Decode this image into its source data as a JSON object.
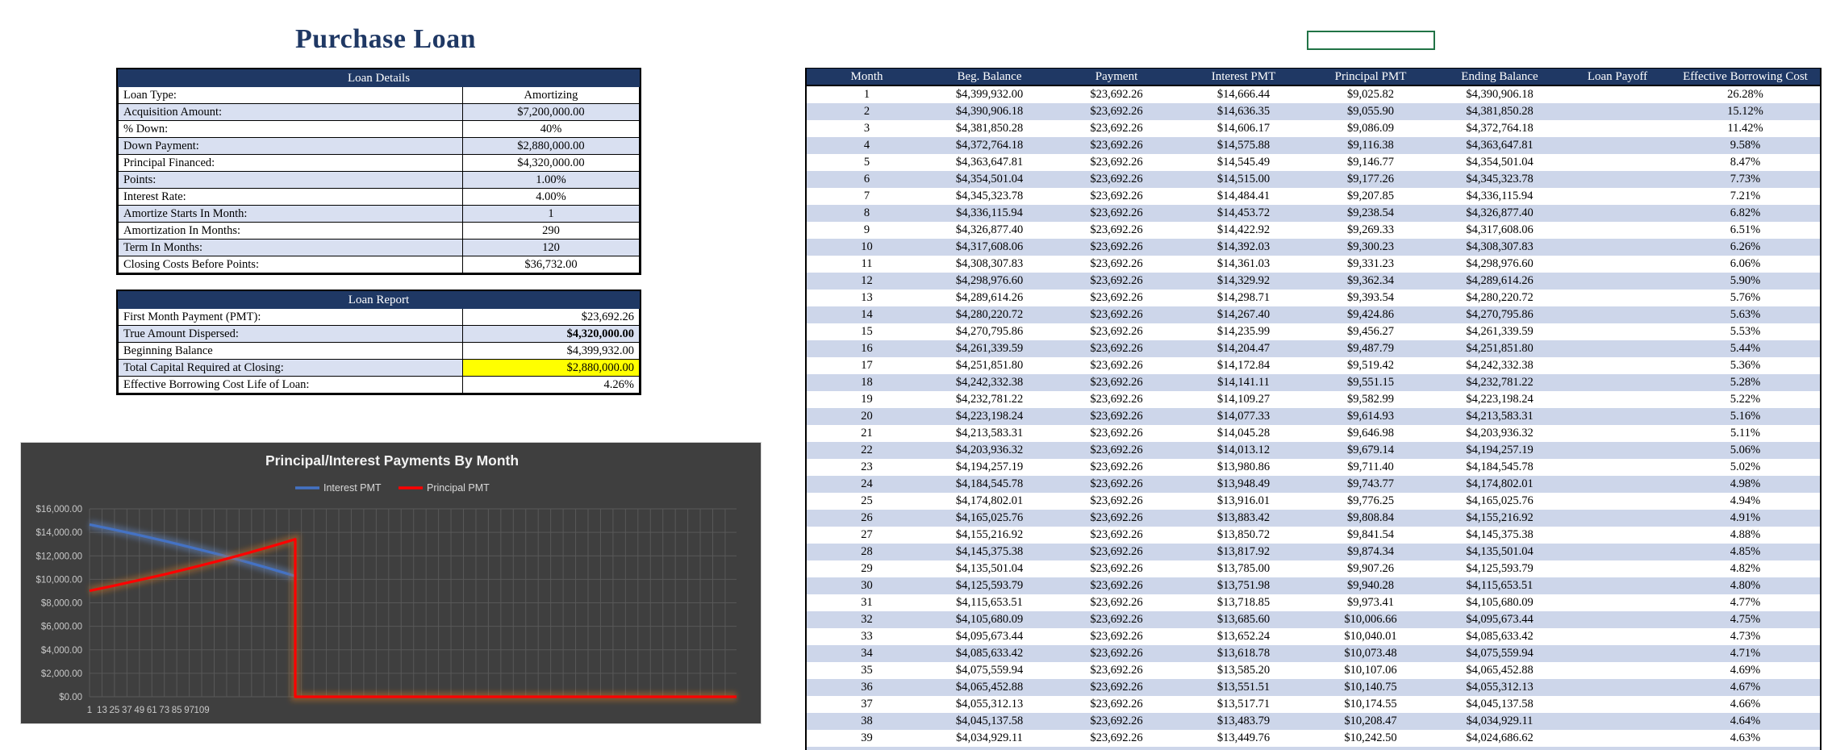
{
  "workbook": {
    "title": "Purchase Loan"
  },
  "loan_details": {
    "header": "Loan Details",
    "rows": [
      {
        "label": "Loan Type:",
        "value": "Amortizing"
      },
      {
        "label": "Acquisition Amount:",
        "value": "$7,200,000.00"
      },
      {
        "label": "% Down:",
        "value": "40%"
      },
      {
        "label": "Down Payment:",
        "value": "$2,880,000.00"
      },
      {
        "label": "Principal Financed:",
        "value": "$4,320,000.00"
      },
      {
        "label": "Points:",
        "value": "1.00%"
      },
      {
        "label": "Interest Rate:",
        "value": "4.00%"
      },
      {
        "label": "Amortize Starts In Month:",
        "value": "1"
      },
      {
        "label": "Amortization In Months:",
        "value": "290"
      },
      {
        "label": "Term In Months:",
        "value": "120"
      },
      {
        "label": "Closing Costs Before Points:",
        "value": "$36,732.00"
      }
    ]
  },
  "loan_report": {
    "header": "Loan Report",
    "rows": [
      {
        "label": "First Month Payment (PMT):",
        "value": "$23,692.26"
      },
      {
        "label": "True Amount Dispersed:",
        "value": "$4,320,000.00",
        "bold": true
      },
      {
        "label": "Beginning Balance",
        "value": "$4,399,932.00"
      },
      {
        "label": "Total Capital Required at Closing:",
        "value": "$2,880,000.00",
        "highlight": true
      },
      {
        "label": "Effective Borrowing Cost Life of Loan:",
        "value": "4.26%"
      }
    ]
  },
  "selection": {
    "value": ""
  },
  "chart_data": {
    "type": "line",
    "title": "Principal/Interest Payments By Month",
    "legend_position": "top",
    "grid": true,
    "ylim": [
      0,
      16000
    ],
    "y_tick_labels": [
      "$16,000.00",
      "$14,000.00",
      "$12,000.00",
      "$10,000.00",
      "$8,000.00",
      "$6,000.00",
      "$4,000.00",
      "$2,000.00",
      "$0.00"
    ],
    "x_tick_labels": [
      "1",
      "13",
      "25",
      "37",
      "49",
      "61",
      "73",
      "85",
      "97",
      "109"
    ],
    "series": [
      {
        "name": "Interest PMT",
        "color": "#4472C4",
        "glow": "rgba(100,140,205,0.45)",
        "points": [
          [
            1,
            14666
          ],
          [
            15,
            14236
          ],
          [
            30,
            13752
          ],
          [
            45,
            13244
          ],
          [
            60,
            12709
          ],
          [
            75,
            12146
          ],
          [
            90,
            11555
          ],
          [
            105,
            10934
          ],
          [
            120,
            10281
          ]
        ]
      },
      {
        "name": "Principal PMT",
        "color": "#FF0000",
        "glow": "rgba(205,115,40,0.45)",
        "points": [
          [
            1,
            9026
          ],
          [
            15,
            9456
          ],
          [
            30,
            9940
          ],
          [
            45,
            10448
          ],
          [
            60,
            10983
          ],
          [
            75,
            11546
          ],
          [
            90,
            12137
          ],
          [
            105,
            12758
          ],
          [
            120,
            13411
          ],
          [
            120,
            0
          ],
          [
            640,
            0
          ]
        ]
      }
    ]
  },
  "amortization": {
    "columns": [
      "Month",
      "Beg. Balance",
      "Payment",
      "Interest PMT",
      "Principal PMT",
      "Ending Balance",
      "Loan Payoff",
      "Effective Borrowing Cost"
    ],
    "rows": [
      [
        "1",
        "$4,399,932.00",
        "$23,692.26",
        "$14,666.44",
        "$9,025.82",
        "$4,390,906.18",
        "",
        "26.28%"
      ],
      [
        "2",
        "$4,390,906.18",
        "$23,692.26",
        "$14,636.35",
        "$9,055.90",
        "$4,381,850.28",
        "",
        "15.12%"
      ],
      [
        "3",
        "$4,381,850.28",
        "$23,692.26",
        "$14,606.17",
        "$9,086.09",
        "$4,372,764.18",
        "",
        "11.42%"
      ],
      [
        "4",
        "$4,372,764.18",
        "$23,692.26",
        "$14,575.88",
        "$9,116.38",
        "$4,363,647.81",
        "",
        "9.58%"
      ],
      [
        "5",
        "$4,363,647.81",
        "$23,692.26",
        "$14,545.49",
        "$9,146.77",
        "$4,354,501.04",
        "",
        "8.47%"
      ],
      [
        "6",
        "$4,354,501.04",
        "$23,692.26",
        "$14,515.00",
        "$9,177.26",
        "$4,345,323.78",
        "",
        "7.73%"
      ],
      [
        "7",
        "$4,345,323.78",
        "$23,692.26",
        "$14,484.41",
        "$9,207.85",
        "$4,336,115.94",
        "",
        "7.21%"
      ],
      [
        "8",
        "$4,336,115.94",
        "$23,692.26",
        "$14,453.72",
        "$9,238.54",
        "$4,326,877.40",
        "",
        "6.82%"
      ],
      [
        "9",
        "$4,326,877.40",
        "$23,692.26",
        "$14,422.92",
        "$9,269.33",
        "$4,317,608.06",
        "",
        "6.51%"
      ],
      [
        "10",
        "$4,317,608.06",
        "$23,692.26",
        "$14,392.03",
        "$9,300.23",
        "$4,308,307.83",
        "",
        "6.26%"
      ],
      [
        "11",
        "$4,308,307.83",
        "$23,692.26",
        "$14,361.03",
        "$9,331.23",
        "$4,298,976.60",
        "",
        "6.06%"
      ],
      [
        "12",
        "$4,298,976.60",
        "$23,692.26",
        "$14,329.92",
        "$9,362.34",
        "$4,289,614.26",
        "",
        "5.90%"
      ],
      [
        "13",
        "$4,289,614.26",
        "$23,692.26",
        "$14,298.71",
        "$9,393.54",
        "$4,280,220.72",
        "",
        "5.76%"
      ],
      [
        "14",
        "$4,280,220.72",
        "$23,692.26",
        "$14,267.40",
        "$9,424.86",
        "$4,270,795.86",
        "",
        "5.63%"
      ],
      [
        "15",
        "$4,270,795.86",
        "$23,692.26",
        "$14,235.99",
        "$9,456.27",
        "$4,261,339.59",
        "",
        "5.53%"
      ],
      [
        "16",
        "$4,261,339.59",
        "$23,692.26",
        "$14,204.47",
        "$9,487.79",
        "$4,251,851.80",
        "",
        "5.44%"
      ],
      [
        "17",
        "$4,251,851.80",
        "$23,692.26",
        "$14,172.84",
        "$9,519.42",
        "$4,242,332.38",
        "",
        "5.36%"
      ],
      [
        "18",
        "$4,242,332.38",
        "$23,692.26",
        "$14,141.11",
        "$9,551.15",
        "$4,232,781.22",
        "",
        "5.28%"
      ],
      [
        "19",
        "$4,232,781.22",
        "$23,692.26",
        "$14,109.27",
        "$9,582.99",
        "$4,223,198.24",
        "",
        "5.22%"
      ],
      [
        "20",
        "$4,223,198.24",
        "$23,692.26",
        "$14,077.33",
        "$9,614.93",
        "$4,213,583.31",
        "",
        "5.16%"
      ],
      [
        "21",
        "$4,213,583.31",
        "$23,692.26",
        "$14,045.28",
        "$9,646.98",
        "$4,203,936.32",
        "",
        "5.11%"
      ],
      [
        "22",
        "$4,203,936.32",
        "$23,692.26",
        "$14,013.12",
        "$9,679.14",
        "$4,194,257.19",
        "",
        "5.06%"
      ],
      [
        "23",
        "$4,194,257.19",
        "$23,692.26",
        "$13,980.86",
        "$9,711.40",
        "$4,184,545.78",
        "",
        "5.02%"
      ],
      [
        "24",
        "$4,184,545.78",
        "$23,692.26",
        "$13,948.49",
        "$9,743.77",
        "$4,174,802.01",
        "",
        "4.98%"
      ],
      [
        "25",
        "$4,174,802.01",
        "$23,692.26",
        "$13,916.01",
        "$9,776.25",
        "$4,165,025.76",
        "",
        "4.94%"
      ],
      [
        "26",
        "$4,165,025.76",
        "$23,692.26",
        "$13,883.42",
        "$9,808.84",
        "$4,155,216.92",
        "",
        "4.91%"
      ],
      [
        "27",
        "$4,155,216.92",
        "$23,692.26",
        "$13,850.72",
        "$9,841.54",
        "$4,145,375.38",
        "",
        "4.88%"
      ],
      [
        "28",
        "$4,145,375.38",
        "$23,692.26",
        "$13,817.92",
        "$9,874.34",
        "$4,135,501.04",
        "",
        "4.85%"
      ],
      [
        "29",
        "$4,135,501.04",
        "$23,692.26",
        "$13,785.00",
        "$9,907.26",
        "$4,125,593.79",
        "",
        "4.82%"
      ],
      [
        "30",
        "$4,125,593.79",
        "$23,692.26",
        "$13,751.98",
        "$9,940.28",
        "$4,115,653.51",
        "",
        "4.80%"
      ],
      [
        "31",
        "$4,115,653.51",
        "$23,692.26",
        "$13,718.85",
        "$9,973.41",
        "$4,105,680.09",
        "",
        "4.77%"
      ],
      [
        "32",
        "$4,105,680.09",
        "$23,692.26",
        "$13,685.60",
        "$10,006.66",
        "$4,095,673.44",
        "",
        "4.75%"
      ],
      [
        "33",
        "$4,095,673.44",
        "$23,692.26",
        "$13,652.24",
        "$10,040.01",
        "$4,085,633.42",
        "",
        "4.73%"
      ],
      [
        "34",
        "$4,085,633.42",
        "$23,692.26",
        "$13,618.78",
        "$10,073.48",
        "$4,075,559.94",
        "",
        "4.71%"
      ],
      [
        "35",
        "$4,075,559.94",
        "$23,692.26",
        "$13,585.20",
        "$10,107.06",
        "$4,065,452.88",
        "",
        "4.69%"
      ],
      [
        "36",
        "$4,065,452.88",
        "$23,692.26",
        "$13,551.51",
        "$10,140.75",
        "$4,055,312.13",
        "",
        "4.67%"
      ],
      [
        "37",
        "$4,055,312.13",
        "$23,692.26",
        "$13,517.71",
        "$10,174.55",
        "$4,045,137.58",
        "",
        "4.66%"
      ],
      [
        "38",
        "$4,045,137.58",
        "$23,692.26",
        "$13,483.79",
        "$10,208.47",
        "$4,034,929.11",
        "",
        "4.64%"
      ],
      [
        "39",
        "$4,034,929.11",
        "$23,692.26",
        "$13,449.76",
        "$10,242.50",
        "$4,024,686.62",
        "",
        "4.63%"
      ]
    ]
  }
}
